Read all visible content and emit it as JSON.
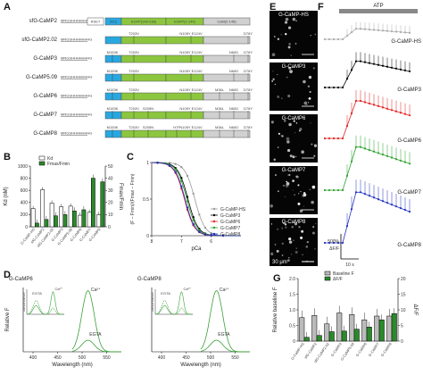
{
  "figure": {
    "panel_letters": [
      "A",
      "B",
      "C",
      "D",
      "E",
      "F",
      "G"
    ]
  },
  "panel_a": {
    "constructs": [
      {
        "name": "sfG-CaMP2",
        "n_term": "MRGSHHHHHHHG",
        "segments": [
          "RSET",
          "M13",
          "EGFP(149-238)",
          "EGFP(1-144)",
          "CaM(2-148)"
        ],
        "muts": []
      },
      {
        "name": "sfG-CaMP2.02",
        "n_term": "MRGSHHHHHHHG",
        "segments": [],
        "muts": [
          "T203V",
          "N105Y E124V",
          "D78Y"
        ]
      },
      {
        "name": "G-CaMP3",
        "n_term": "MRGSHHHHHHHG",
        "segments": [],
        "muts": [
          "M153K",
          "T203V",
          "N105Y E124V",
          "N60D",
          "D78Y"
        ]
      },
      {
        "name": "G-CaMP5.09",
        "n_term": "MRGSHHHHHHHG",
        "segments": [],
        "muts": [
          "M153K",
          "T203V",
          "N105Y E124V",
          "N60D",
          "D78Y"
        ]
      },
      {
        "name": "G-CaMP6",
        "n_term": "MRGSHHHHHHHG",
        "segments": [],
        "muts": [
          "M153K",
          "T203V",
          "N105Y E124V",
          "M36L",
          "N60D",
          "D78Y"
        ]
      },
      {
        "name": "G-CaMP7",
        "n_term": "MRGSHHHHHHHG",
        "segments": [],
        "muts": [
          "M153K",
          "T203V",
          "S205N",
          "N105Y E124V",
          "M36L",
          "N60D",
          "D78Y"
        ]
      },
      {
        "name": "G-CaMP8",
        "n_term": "MRGSHHHHHHHG",
        "segments": [],
        "muts": [
          "M153K",
          "T203V",
          "S205N",
          "H7F",
          "N105Y E124V",
          "M36L",
          "N60D",
          "D78Y"
        ]
      }
    ],
    "colors": {
      "m13": "#29a8e0",
      "egfp": "#8cc63f",
      "cam": "#d0d0d0",
      "rset": "#ffffff"
    }
  },
  "panel_b": {
    "chart_data": {
      "type": "bar",
      "categories": [
        "G-CaMP-HS",
        "sfG-CaMP2",
        "sfG-CaMP2.02",
        "G-CaMP3",
        "G-CaMP5.09",
        "G-CaMP6",
        "G-CaMP7",
        "G-CaMP8"
      ],
      "series": [
        {
          "name": "Kd",
          "values": [
            300,
            610,
            390,
            330,
            340,
            190,
            240,
            200
          ],
          "axis": "left",
          "color": "#ffffff"
        },
        {
          "name": "Fmax/Fmin",
          "values": [
            3,
            6,
            9,
            10,
            13,
            14,
            40,
            37
          ],
          "axis": "right",
          "color": "#2b8a2b"
        }
      ],
      "ylabel": "Kd (nM)",
      "ylim": [
        0,
        1000
      ],
      "y_ticks": [
        "0",
        "200",
        "400",
        "600",
        "800",
        "1000"
      ],
      "ylabel_right": "Fmax/Fmin",
      "ylim_right": [
        0,
        50
      ],
      "y_ticks_right": [
        "0",
        "10",
        "20",
        "30",
        "40",
        "50"
      ],
      "legend": [
        "Kd",
        "Fmax/Fmin"
      ]
    }
  },
  "panel_c": {
    "chart_data": {
      "type": "line",
      "xlabel": "pCa",
      "ylabel": "(F – Fmin)/(Fmax – Fmin)",
      "xlim": [
        8,
        5
      ],
      "x_ticks": [
        "8",
        "7",
        "6"
      ],
      "ylim": [
        0,
        1
      ],
      "y_ticks": [
        "0",
        "0.5",
        "1"
      ],
      "series": [
        {
          "name": "G-CaMP-HS",
          "color": "#999999",
          "ec50": 6.55
        },
        {
          "name": "G-CaMP3",
          "color": "#000000",
          "ec50": 6.78
        },
        {
          "name": "G-CaMP6",
          "color": "#e02020",
          "ec50": 6.9
        },
        {
          "name": "G-CaMP7",
          "color": "#2aa02a",
          "ec50": 6.82
        },
        {
          "name": "G-CaMP8",
          "color": "#2030c0",
          "ec50": 6.88
        }
      ]
    }
  },
  "panel_d": {
    "charts": [
      {
        "title": "G-CaMP6",
        "ca_label": "Ca²⁺",
        "egta_label": "EGTA",
        "inset_ca": "Ca²⁺",
        "inset_egta": "EGTA",
        "inset_ylabel": "Absorbance"
      },
      {
        "title": "G-CaMP8",
        "ca_label": "Ca²⁺",
        "egta_label": "EGTA",
        "inset_ca": "Ca²⁺",
        "inset_egta": "EGTA",
        "inset_ylabel": "Absorbance"
      }
    ],
    "ylabel": "Relative F",
    "xlabel": "Wavelength (nm)",
    "x_ticks": [
      "400",
      "450",
      "500",
      "550"
    ]
  },
  "panel_e": {
    "images": [
      "G-CaMP-HS",
      "G-CaMP3",
      "G-CaMP6",
      "G-CaMP7",
      "G-CaMP8"
    ],
    "scale_label": "30 μm"
  },
  "panel_f": {
    "stim_label": "ATP",
    "traces": [
      {
        "name": "G-CaMP-HS",
        "color": "#aaaaaa",
        "peak": 0.28
      },
      {
        "name": "G-CaMP3",
        "color": "#000000",
        "peak": 0.7
      },
      {
        "name": "G-CaMP6",
        "color": "#e02020",
        "peak": 1.0
      },
      {
        "name": "G-CaMP7",
        "color": "#2aa02a",
        "peak": 1.15
      },
      {
        "name": "G-CaMP8",
        "color": "#2030c0",
        "peak": 1.35
      }
    ],
    "scale_y": "500%",
    "scale_y_sub": "ΔF/F",
    "scale_x": "10 s"
  },
  "panel_g": {
    "chart_data": {
      "type": "bar",
      "categories": [
        "G-CaMP-HS",
        "sfG-CaMP2",
        "sfG-CaMP2.02",
        "G-CaMP3",
        "G-CaMP5.09",
        "G-CaMP6",
        "G-CaMP7",
        "G-CaMP8"
      ],
      "series": [
        {
          "name": "Baseline F",
          "values": [
            0.75,
            0.82,
            0.55,
            0.9,
            0.85,
            0.68,
            0.8,
            0.8
          ],
          "color": "#bbbbbb"
        },
        {
          "name": "ΔF/F",
          "values": [
            0.12,
            0.18,
            0.3,
            0.32,
            0.38,
            0.45,
            0.68,
            0.88
          ],
          "color": "#2b8a2b"
        }
      ],
      "ylabel": "Relative baseline F",
      "ylim": [
        0,
        2
      ],
      "y_ticks": [
        "0",
        "0.5",
        "1.0",
        "1.5",
        "2.0"
      ],
      "ylabel_right": "ΔF/F",
      "y_ticks_right": [
        "0",
        "5",
        "10",
        "15",
        "20"
      ],
      "legend": [
        "Baseline F",
        "ΔF/F"
      ]
    }
  }
}
